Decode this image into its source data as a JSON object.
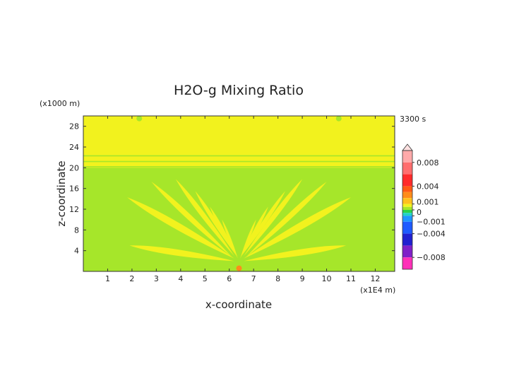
{
  "chart_data": {
    "type": "heatmap",
    "title": "H2O-g Mixing Ratio",
    "time_label": "3300 s",
    "xlabel": "x-coordinate",
    "ylabel": "z-coordinate",
    "x_unit": "(x1E4 m)",
    "y_unit": "(x1000 m)",
    "xlim": [
      0,
      12.8
    ],
    "ylim": [
      0,
      30
    ],
    "x_ticks": [
      1,
      2,
      3,
      4,
      5,
      6,
      7,
      8,
      9,
      10,
      11,
      12
    ],
    "y_ticks": [
      4,
      8,
      12,
      16,
      20,
      24,
      28
    ],
    "background_value_colors": {
      "lower_field": "#a6e62a",
      "upper_field": "#f2f21e",
      "plume": "#f2f21e",
      "source": "#ff8c1a"
    },
    "colorbar": {
      "labels": [
        {
          "value": 0.008,
          "text": "0.008"
        },
        {
          "value": 0.004,
          "text": "0.004"
        },
        {
          "value": 0.001,
          "text": "0.001"
        },
        {
          "value": 0,
          "text": "0"
        },
        {
          "value": -0.001,
          "text": "−0.001"
        },
        {
          "value": -0.004,
          "text": "−0.004"
        },
        {
          "value": -0.008,
          "text": "−0.008"
        }
      ],
      "bands": [
        {
          "from": 0.008,
          "to": 0.01,
          "color": "#ffaaaa"
        },
        {
          "from": 0.006,
          "to": 0.008,
          "color": "#ff6e6e"
        },
        {
          "from": 0.004,
          "to": 0.006,
          "color": "#ff2a2a"
        },
        {
          "from": 0.003,
          "to": 0.004,
          "color": "#ff5a14"
        },
        {
          "from": 0.002,
          "to": 0.003,
          "color": "#ff8c1a"
        },
        {
          "from": 0.001,
          "to": 0.002,
          "color": "#ffc01e"
        },
        {
          "from": 0.0005,
          "to": 0.001,
          "color": "#f2f21e"
        },
        {
          "from": 0,
          "to": 0.0005,
          "color": "#a6e62a"
        },
        {
          "from": -0.0005,
          "to": 0,
          "color": "#2ad24a"
        },
        {
          "from": -0.001,
          "to": -0.0005,
          "color": "#20d2c8"
        },
        {
          "from": -0.002,
          "to": -0.001,
          "color": "#1e96ff"
        },
        {
          "from": -0.004,
          "to": -0.002,
          "color": "#1e5aff"
        },
        {
          "from": -0.006,
          "to": -0.004,
          "color": "#2020d0"
        },
        {
          "from": -0.008,
          "to": -0.006,
          "color": "#8020c8"
        },
        {
          "from": -0.01,
          "to": -0.008,
          "color": "#ff30b8"
        }
      ]
    },
    "upper_layer": {
      "z_from": 20,
      "z_to": 30,
      "bands_at": [
        20.2,
        21.2,
        22.3
      ]
    },
    "plume_arms": [
      {
        "x1": 1.9,
        "z1": 5.0,
        "x2": 6.2,
        "z2": 2.0,
        "width": 1.5
      },
      {
        "x1": 10.8,
        "z1": 5.0,
        "x2": 6.6,
        "z2": 2.0,
        "width": 1.5
      },
      {
        "x1": 1.8,
        "z1": 14.3,
        "x2": 6.2,
        "z2": 2.5,
        "width": 1.7
      },
      {
        "x1": 11.0,
        "z1": 14.3,
        "x2": 6.6,
        "z2": 2.5,
        "width": 1.7
      },
      {
        "x1": 2.8,
        "z1": 17.3,
        "x2": 6.1,
        "z2": 2.8,
        "width": 1.3
      },
      {
        "x1": 10.0,
        "z1": 17.3,
        "x2": 6.7,
        "z2": 2.8,
        "width": 1.3
      },
      {
        "x1": 3.8,
        "z1": 17.8,
        "x2": 6.2,
        "z2": 3.0,
        "width": 1.2
      },
      {
        "x1": 9.0,
        "z1": 17.8,
        "x2": 6.6,
        "z2": 3.0,
        "width": 1.2
      },
      {
        "x1": 4.6,
        "z1": 15.5,
        "x2": 6.3,
        "z2": 3.0,
        "width": 1.0
      },
      {
        "x1": 8.3,
        "z1": 15.5,
        "x2": 6.5,
        "z2": 3.0,
        "width": 1.0
      },
      {
        "x1": 5.2,
        "z1": 12.5,
        "x2": 6.3,
        "z2": 3.0,
        "width": 0.8
      },
      {
        "x1": 7.6,
        "z1": 12.5,
        "x2": 6.5,
        "z2": 3.0,
        "width": 0.8
      },
      {
        "x1": 5.7,
        "z1": 10.0,
        "x2": 6.35,
        "z2": 2.5,
        "width": 0.6
      },
      {
        "x1": 7.1,
        "z1": 10.0,
        "x2": 6.45,
        "z2": 2.5,
        "width": 0.6
      }
    ],
    "markers": [
      {
        "x": 6.4,
        "z": 0.6,
        "color": "#ff8c1a"
      },
      {
        "x": 2.3,
        "z": 29.5,
        "color": "#a6e62a"
      },
      {
        "x": 10.5,
        "z": 29.5,
        "color": "#a6e62a"
      }
    ]
  }
}
